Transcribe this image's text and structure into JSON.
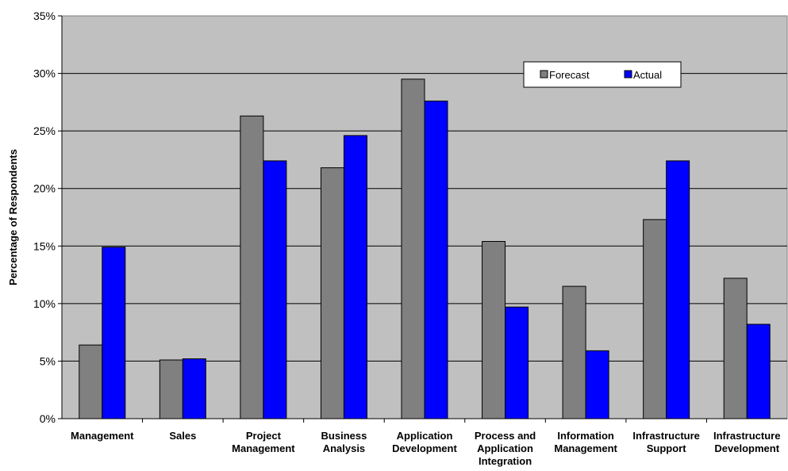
{
  "chart_data": {
    "type": "bar",
    "title": "",
    "xlabel": "",
    "ylabel": "Percentage of Respondents",
    "ylim": [
      0,
      35
    ],
    "yticks": [
      0,
      5,
      10,
      15,
      20,
      25,
      30,
      35
    ],
    "ytick_labels": [
      "0%",
      "5%",
      "10%",
      "15%",
      "20%",
      "25%",
      "30%",
      "35%"
    ],
    "grid": true,
    "legend_position": "top-right",
    "categories": [
      [
        "Management"
      ],
      [
        "Sales"
      ],
      [
        "Project",
        "Management"
      ],
      [
        "Business",
        "Analysis"
      ],
      [
        "Application",
        "Development"
      ],
      [
        "Process and",
        "Application",
        "Integration"
      ],
      [
        "Information",
        "Management"
      ],
      [
        "Infrastructure",
        "Support"
      ],
      [
        "Infrastructure",
        "Development"
      ]
    ],
    "series": [
      {
        "name": "Forecast",
        "color": "#808080",
        "values": [
          6.4,
          5.1,
          26.3,
          21.8,
          29.5,
          15.4,
          11.5,
          17.3,
          12.2
        ]
      },
      {
        "name": "Actual",
        "color": "#0000ff",
        "values": [
          14.9,
          5.2,
          22.4,
          24.6,
          27.6,
          9.7,
          5.9,
          22.4,
          8.2
        ]
      }
    ],
    "plot_background": "#c0c0c0"
  }
}
